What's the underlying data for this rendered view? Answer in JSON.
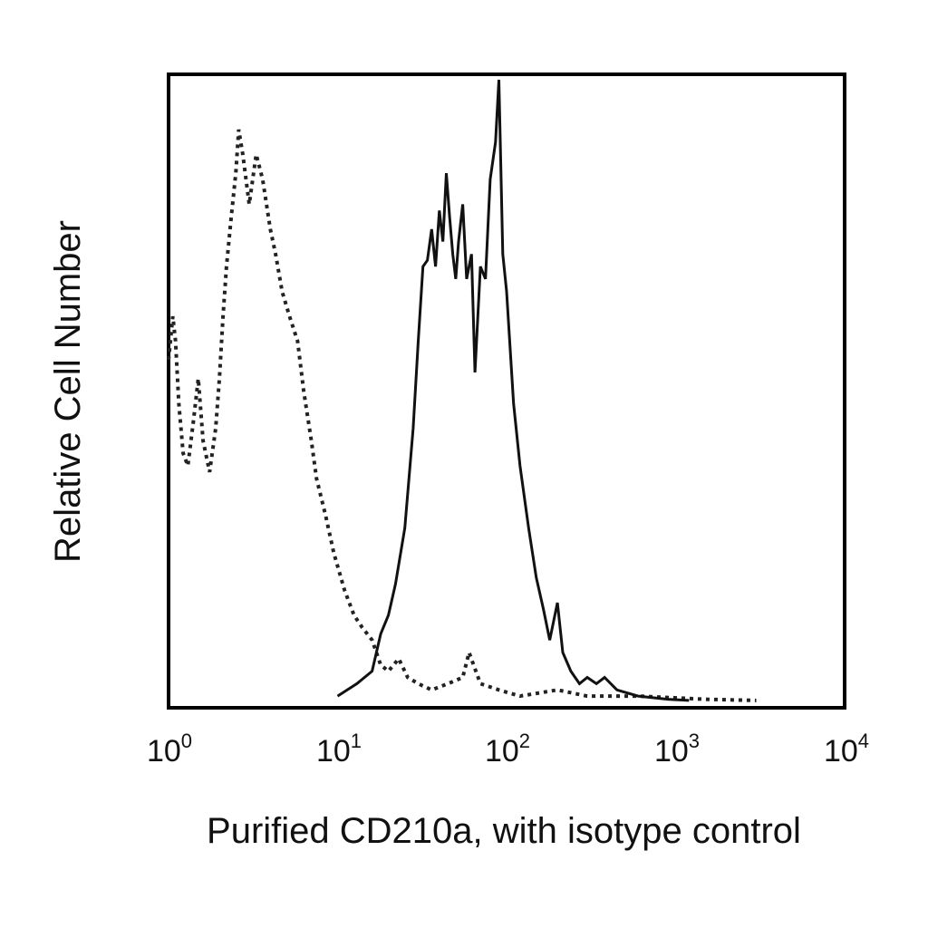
{
  "chart_data": {
    "type": "histogram",
    "xscale": "log",
    "xlim": [
      1,
      10000
    ],
    "ylim": [
      0,
      100
    ],
    "grid": false,
    "legend": "none",
    "xlabel": "Purified CD210a, with isotype control",
    "ylabel": "Relative Cell Number",
    "x_ticks": [
      {
        "base": "10",
        "exp": "0",
        "value": 1
      },
      {
        "base": "10",
        "exp": "1",
        "value": 10
      },
      {
        "base": "10",
        "exp": "2",
        "value": 100
      },
      {
        "base": "10",
        "exp": "3",
        "value": 1000
      },
      {
        "base": "10",
        "exp": "4",
        "value": 10000
      }
    ],
    "series": [
      {
        "style": "dotted",
        "color": "#222222",
        "points": [
          [
            1.0,
            55
          ],
          [
            1.06,
            62
          ],
          [
            1.1,
            58
          ],
          [
            1.15,
            48
          ],
          [
            1.22,
            40
          ],
          [
            1.3,
            38
          ],
          [
            1.4,
            45
          ],
          [
            1.5,
            52
          ],
          [
            1.6,
            42
          ],
          [
            1.75,
            37
          ],
          [
            1.9,
            44
          ],
          [
            2.0,
            52
          ],
          [
            2.1,
            62
          ],
          [
            2.2,
            70
          ],
          [
            2.35,
            78
          ],
          [
            2.5,
            85
          ],
          [
            2.6,
            92
          ],
          [
            2.75,
            88
          ],
          [
            3.0,
            80
          ],
          [
            3.3,
            88
          ],
          [
            3.6,
            84
          ],
          [
            4.0,
            76
          ],
          [
            4.3,
            72
          ],
          [
            4.7,
            66
          ],
          [
            5.2,
            62
          ],
          [
            5.8,
            58
          ],
          [
            6.3,
            50
          ],
          [
            7.0,
            42
          ],
          [
            7.5,
            36
          ],
          [
            8.5,
            30
          ],
          [
            9.5,
            24
          ],
          [
            11.0,
            18
          ],
          [
            12.5,
            14
          ],
          [
            14.0,
            12
          ],
          [
            16.0,
            10
          ],
          [
            18.0,
            6
          ],
          [
            20.0,
            5
          ],
          [
            23.0,
            7
          ],
          [
            26.0,
            4
          ],
          [
            30.0,
            3
          ],
          [
            36.0,
            2
          ],
          [
            45.0,
            3
          ],
          [
            55.0,
            4
          ],
          [
            60.0,
            8
          ],
          [
            70.0,
            3
          ],
          [
            90.0,
            2
          ],
          [
            120,
            1
          ],
          [
            200,
            2
          ],
          [
            300,
            1
          ],
          [
            600,
            1
          ],
          [
            1500,
            0.5
          ],
          [
            3000,
            0.3
          ]
        ]
      },
      {
        "style": "solid",
        "color": "#111111",
        "points": [
          [
            10.0,
            1
          ],
          [
            13.0,
            3
          ],
          [
            16.0,
            5
          ],
          [
            18.0,
            11
          ],
          [
            20.0,
            14
          ],
          [
            22.0,
            19
          ],
          [
            25.0,
            28
          ],
          [
            28.0,
            44
          ],
          [
            30.0,
            58
          ],
          [
            32.0,
            70
          ],
          [
            34.0,
            71
          ],
          [
            36.0,
            76
          ],
          [
            38.0,
            70
          ],
          [
            40.0,
            79
          ],
          [
            42.0,
            74
          ],
          [
            44.0,
            85
          ],
          [
            46.0,
            78
          ],
          [
            48.0,
            72
          ],
          [
            50.0,
            68
          ],
          [
            52.0,
            74
          ],
          [
            55.0,
            80
          ],
          [
            58.0,
            68
          ],
          [
            62.0,
            72
          ],
          [
            65.0,
            53
          ],
          [
            70.0,
            70
          ],
          [
            75.0,
            68
          ],
          [
            80.0,
            84
          ],
          [
            86.0,
            90
          ],
          [
            90.0,
            100
          ],
          [
            95.0,
            72
          ],
          [
            100,
            66
          ],
          [
            110,
            48
          ],
          [
            120,
            38
          ],
          [
            135,
            28
          ],
          [
            150,
            20
          ],
          [
            165,
            15
          ],
          [
            180,
            10
          ],
          [
            200,
            16
          ],
          [
            215,
            8
          ],
          [
            240,
            5
          ],
          [
            270,
            3
          ],
          [
            300,
            4
          ],
          [
            340,
            3
          ],
          [
            380,
            4
          ],
          [
            450,
            2
          ],
          [
            600,
            1
          ],
          [
            900,
            0.5
          ],
          [
            1200,
            0.3
          ]
        ]
      }
    ]
  }
}
